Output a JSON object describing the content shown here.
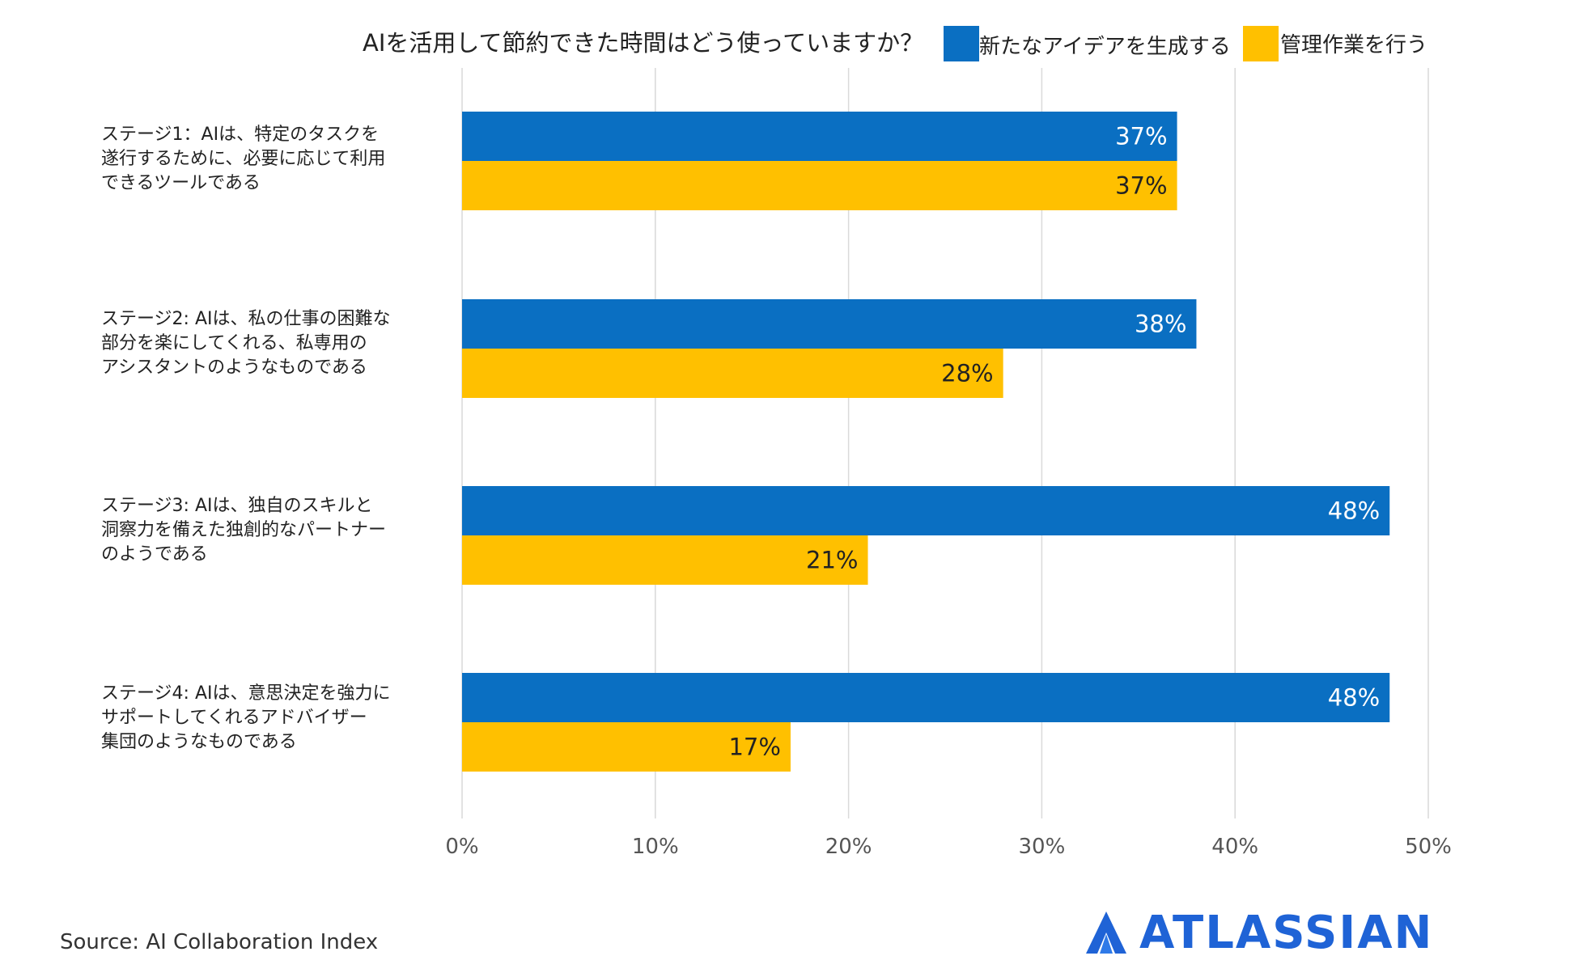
{
  "chart_data": {
    "type": "bar",
    "orientation": "horizontal",
    "title": "AIを活用して節約できた時間はどう使っていますか？",
    "categories": [
      "ステージ1：AIは、特定のタスクを遂行するために、必要に応じて利用できるツールである",
      "ステージ2: AIは、私の仕事の困難な部分を楽にしてくれる、私専用のアシスタントのようなものである",
      "ステージ3: AIは、独自のスキルと洞察力を備えた独創的なパートナーのようである",
      "ステージ4: AIは、意思決定を強力にサポートしてくれるアドバイザー集団のようなものである"
    ],
    "category_lines": [
      [
        "ステージ1：AIは、特定のタスクを",
        "遂行するために、必要に応じて利用",
        "できるツールである"
      ],
      [
        "ステージ2: AIは、私の仕事の困難な",
        "部分を楽にしてくれる、私専用の",
        "アシスタントのようなものである"
      ],
      [
        "ステージ3: AIは、独自のスキルと",
        "洞察力を備えた独創的なパートナー",
        "のようである"
      ],
      [
        "ステージ4: AIは、意思決定を強力に",
        "サポートしてくれるアドバイザー",
        "集団のようなものである"
      ]
    ],
    "series": [
      {
        "name": "新たなアイデアを生成する",
        "color": "#0a6fc2",
        "label_color": "#ffffff",
        "values": [
          37,
          38,
          48,
          48
        ]
      },
      {
        "name": "管理作業を行う",
        "color": "#ffc000",
        "label_color": "#222222",
        "values": [
          37,
          28,
          21,
          17
        ]
      }
    ],
    "value_suffix": "%",
    "xlim": [
      0,
      50
    ],
    "xticks": [
      0,
      10,
      20,
      30,
      40,
      50
    ],
    "xtick_labels": [
      "0%",
      "10%",
      "20%",
      "30%",
      "40%",
      "50%"
    ],
    "grid": true,
    "legend_position": "top-right"
  },
  "source_text": "Source: AI Collaboration Index",
  "logo_text": "ATLASSIAN",
  "logo_color": "#1f63d6"
}
